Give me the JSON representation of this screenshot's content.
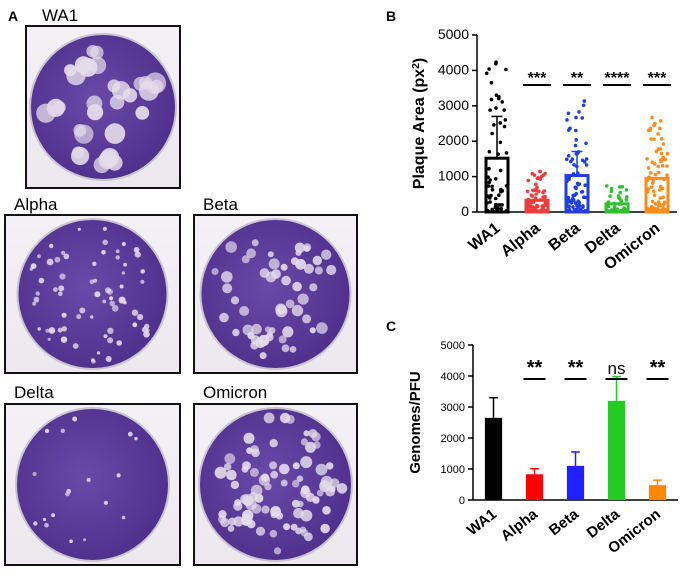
{
  "panels": {
    "a": {
      "letter": "A",
      "plates": [
        {
          "label": "WA1",
          "spots": 32,
          "spot_size": "large",
          "seed": 3
        },
        {
          "label": "Alpha",
          "spots": 70,
          "spot_size": "small",
          "seed": 11
        },
        {
          "label": "Beta",
          "spots": 55,
          "spot_size": "medium",
          "seed": 23
        },
        {
          "label": "Delta",
          "spots": 18,
          "spot_size": "tiny",
          "seed": 37
        },
        {
          "label": "Omicron",
          "spots": 85,
          "spot_size": "medium",
          "seed": 53
        }
      ],
      "colors": {
        "stain": "#4e2f8c",
        "stain_light": "#6a4aa8",
        "plaque": "#e6dcea",
        "rim": "#c9c2cf"
      }
    },
    "b": {
      "letter": "B"
    },
    "c": {
      "letter": "C"
    }
  },
  "chart_data": [
    {
      "type": "bar",
      "title": "",
      "ylabel": "Plaque Area (px²)",
      "ylabel_main": "Plaque Area (px",
      "ylabel_sup": "2",
      "ylabel_close": ")",
      "ylim": [
        0,
        5000
      ],
      "yticks": [
        0,
        1000,
        2000,
        3000,
        4000,
        5000
      ],
      "categories": [
        "WA1",
        "Alpha",
        "Beta",
        "Delta",
        "Omicron"
      ],
      "values": [
        1520,
        330,
        1030,
        230,
        950
      ],
      "errors": [
        1180,
        0,
        680,
        0,
        0
      ],
      "colors": [
        "#000000",
        "#ee3b3b",
        "#1f3fe0",
        "#2fbf2f",
        "#ff8c1a"
      ],
      "points_max": [
        4300,
        1150,
        3150,
        720,
        2750
      ],
      "points_n": [
        60,
        75,
        80,
        40,
        85
      ],
      "significance": [
        "",
        "***",
        "**",
        "****",
        "***"
      ],
      "bar_style": "outlined"
    },
    {
      "type": "bar",
      "title": "",
      "ylabel": "Genomes/PFU",
      "ylim": [
        0,
        5000
      ],
      "yticks": [
        0,
        1000,
        2000,
        3000,
        4000,
        5000
      ],
      "categories": [
        "WA1",
        "Alpha",
        "Beta",
        "Delta",
        "Omicron"
      ],
      "values": [
        2650,
        830,
        1100,
        3200,
        480
      ],
      "errors": [
        650,
        180,
        450,
        780,
        160
      ],
      "colors": [
        "#000000",
        "#ff0000",
        "#1f1fff",
        "#22cc22",
        "#ff8800"
      ],
      "significance": [
        "",
        "**",
        "**",
        "ns",
        "**"
      ],
      "bar_style": "filled"
    }
  ]
}
